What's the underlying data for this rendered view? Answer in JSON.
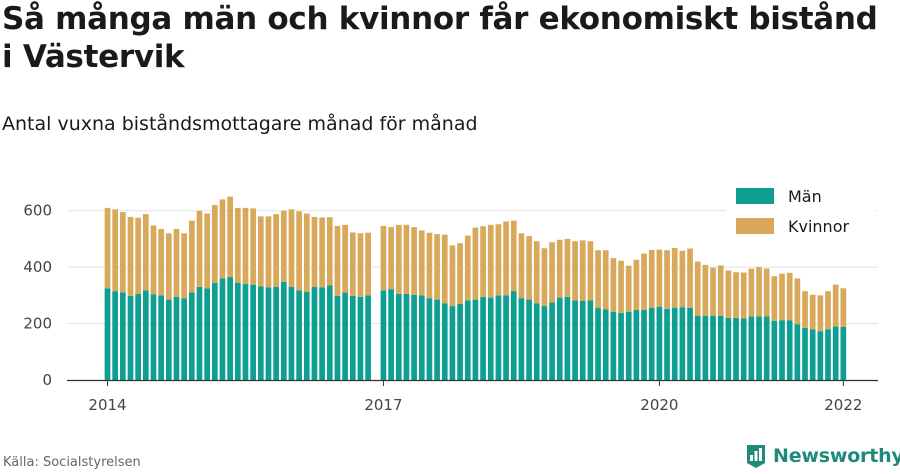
{
  "title": "Så många män och kvinnor får ekonomiskt bistånd i Västervik",
  "subtitle": "Antal vuxna biståndsmottagare månad för månad",
  "source": "Källa: Socialstyrelsen",
  "brand": {
    "name": "Newsworthy",
    "icon": "newsworthy-logo-icon"
  },
  "colors": {
    "men": "#0e9f92",
    "women": "#d9a95b",
    "grid": "#e3e3e3",
    "axis": "#333333"
  },
  "chart_data": {
    "type": "bar",
    "stacked": true,
    "title": "Så många män och kvinnor får ekonomiskt bistånd i Västervik",
    "subtitle": "Antal vuxna biståndsmottagare månad för månad",
    "ylim": [
      0,
      700
    ],
    "yticks": [
      0,
      200,
      400,
      600
    ],
    "xticks": [
      "2014",
      "2017",
      "2020",
      "2022"
    ],
    "grid": true,
    "legend": "top-right",
    "legend_items": [
      "Män",
      "Kvinnor"
    ],
    "x_start": "2014-01",
    "x_frequency": "monthly",
    "missing": [
      "2016-12"
    ],
    "series": [
      {
        "name": "Män",
        "values": [
          325,
          315,
          310,
          298,
          305,
          318,
          303,
          300,
          285,
          295,
          290,
          310,
          330,
          325,
          345,
          360,
          365,
          345,
          340,
          338,
          332,
          328,
          330,
          348,
          330,
          318,
          312,
          330,
          328,
          335,
          298,
          310,
          298,
          295,
          300,
          null,
          318,
          322,
          305,
          305,
          302,
          300,
          290,
          285,
          272,
          262,
          270,
          282,
          285,
          295,
          292,
          300,
          300,
          315,
          290,
          285,
          272,
          262,
          275,
          292,
          295,
          282,
          280,
          282,
          255,
          250,
          242,
          238,
          242,
          248,
          248,
          256,
          260,
          252,
          256,
          258,
          256,
          228,
          228,
          228,
          228,
          220,
          220,
          218,
          225,
          225,
          225,
          210,
          212,
          212,
          198,
          185,
          180,
          172,
          180,
          190,
          188
        ]
      },
      {
        "name": "Kvinnor",
        "values": [
          285,
          290,
          285,
          280,
          270,
          270,
          245,
          235,
          235,
          240,
          230,
          255,
          270,
          265,
          275,
          280,
          285,
          265,
          270,
          270,
          248,
          252,
          258,
          252,
          275,
          280,
          278,
          248,
          248,
          242,
          248,
          240,
          225,
          225,
          222,
          null,
          228,
          220,
          245,
          245,
          240,
          230,
          232,
          232,
          243,
          215,
          215,
          230,
          255,
          250,
          258,
          252,
          262,
          250,
          230,
          225,
          220,
          205,
          213,
          205,
          205,
          210,
          215,
          210,
          205,
          210,
          190,
          185,
          163,
          178,
          200,
          205,
          202,
          208,
          212,
          200,
          210,
          192,
          180,
          170,
          178,
          168,
          162,
          163,
          170,
          175,
          170,
          158,
          165,
          168,
          162,
          130,
          122,
          128,
          135,
          148,
          137
        ]
      }
    ]
  }
}
